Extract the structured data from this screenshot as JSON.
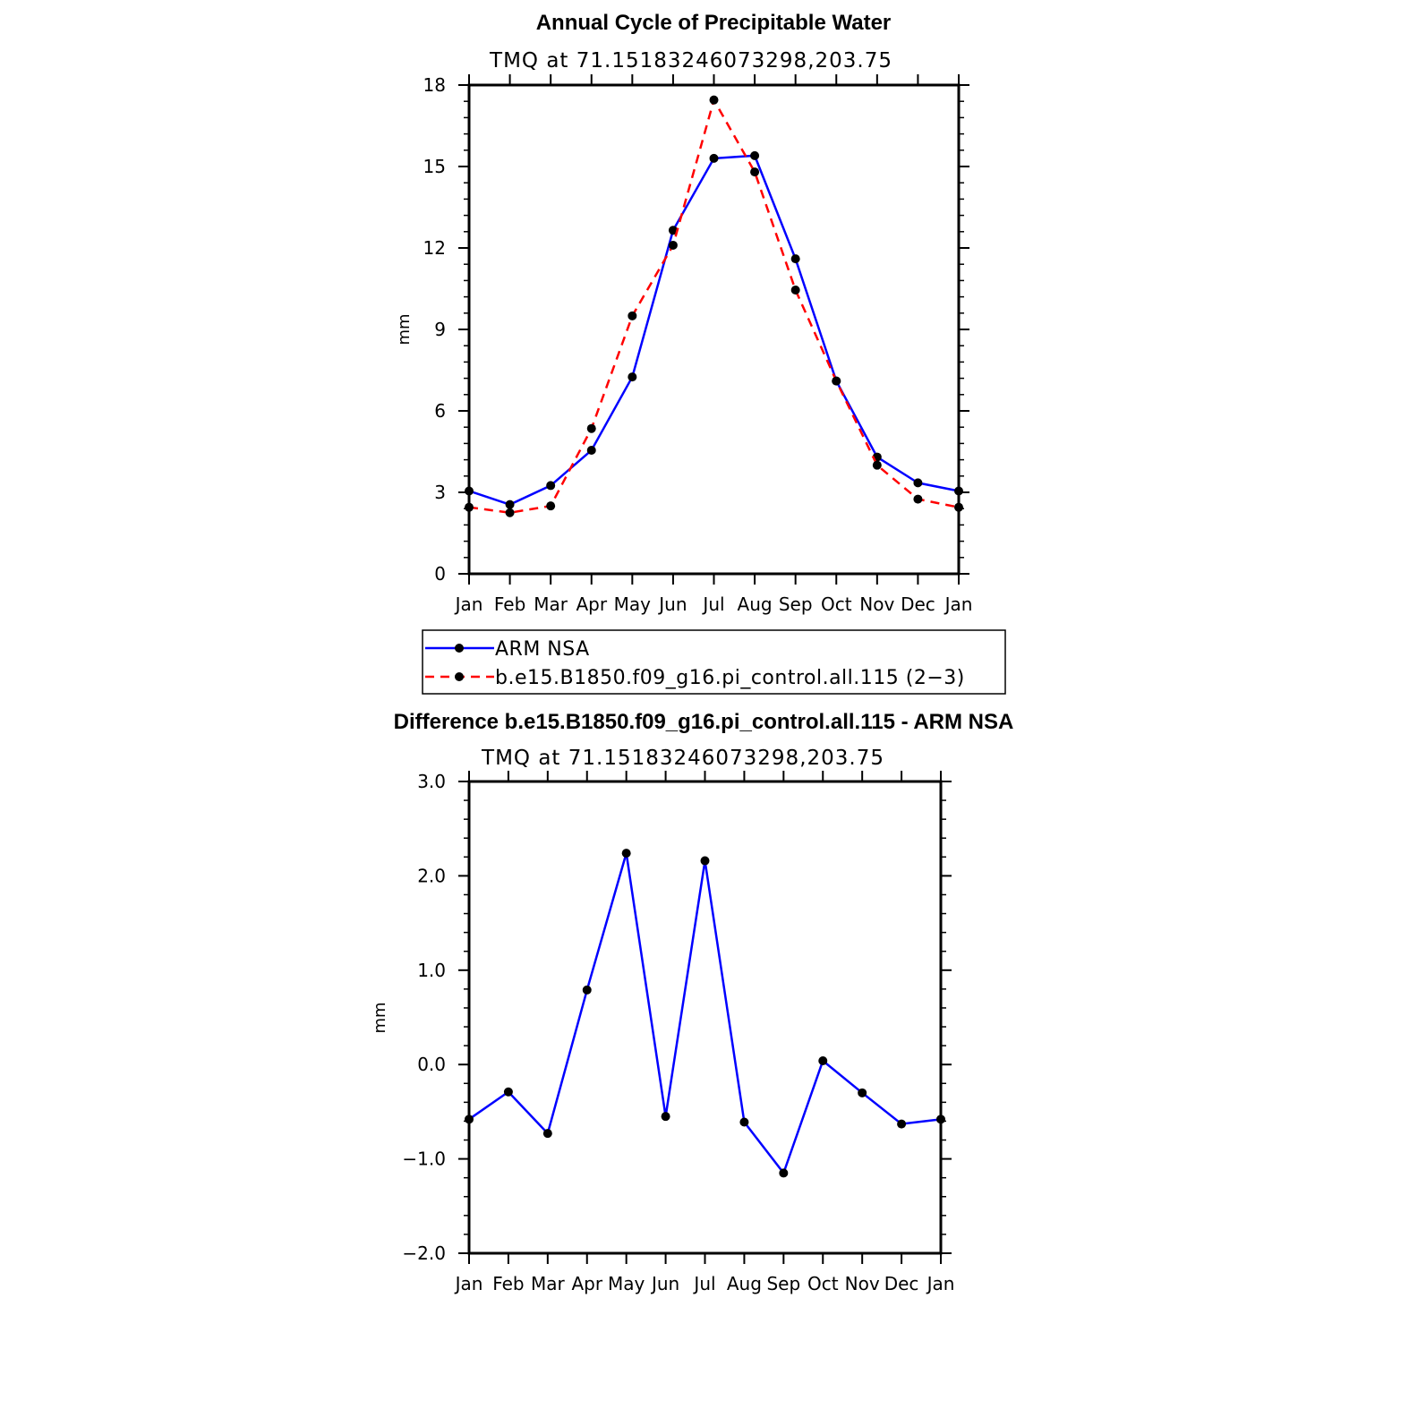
{
  "chart_data": [
    {
      "type": "line",
      "title": "Annual Cycle of Precipitable Water",
      "subtitle": "TMQ at 71.15183246073298,203.75",
      "ylabel": "mm",
      "ylim": [
        0,
        18
      ],
      "yticks": [
        "0",
        "3",
        "6",
        "9",
        "12",
        "15",
        "18"
      ],
      "yticks_values": [
        0,
        3,
        6,
        9,
        12,
        15,
        18
      ],
      "categories": [
        "Jan",
        "Feb",
        "Mar",
        "Apr",
        "May",
        "Jun",
        "Jul",
        "Aug",
        "Sep",
        "Oct",
        "Nov",
        "Dec",
        "Jan"
      ],
      "series": [
        {
          "name": "ARM  NSA",
          "color": "#0000ff",
          "dash": "solid",
          "values": [
            3.05,
            2.55,
            3.25,
            4.55,
            7.25,
            12.65,
            15.3,
            15.4,
            11.6,
            7.1,
            4.3,
            3.35,
            3.05
          ]
        },
        {
          "name": "b.e15.B1850.f09_g16.pi_control.all.115 (2-3)",
          "color": "#ff0000",
          "dash": "dashed",
          "values": [
            2.45,
            2.25,
            2.5,
            5.35,
            9.5,
            12.1,
            17.45,
            14.8,
            10.45,
            7.1,
            4.0,
            2.75,
            2.45
          ]
        }
      ],
      "legend": [
        {
          "label": "ARM  NSA",
          "color": "#0000ff",
          "dash": "solid"
        },
        {
          "label": "b.e15.B1850.f09_g16.pi_control.all.115 (2−3)",
          "color": "#ff0000",
          "dash": "dashed"
        }
      ]
    },
    {
      "type": "line",
      "title": "Difference b.e15.B1850.f09_g16.pi_control.all.115 - ARM NSA",
      "subtitle": "TMQ at 71.15183246073298,203.75",
      "ylabel": "mm",
      "ylim": [
        -2.0,
        3.0
      ],
      "yticks": [
        "−2.0",
        "−1.0",
        "0.0",
        "1.0",
        "2.0",
        "3.0"
      ],
      "yticks_values": [
        -2.0,
        -1.0,
        0.0,
        1.0,
        2.0,
        3.0
      ],
      "categories": [
        "Jan",
        "Feb",
        "Mar",
        "Apr",
        "May",
        "Jun",
        "Jul",
        "Aug",
        "Sep",
        "Oct",
        "Nov",
        "Dec",
        "Jan"
      ],
      "series": [
        {
          "name": "Difference",
          "color": "#0000ff",
          "dash": "solid",
          "values": [
            -0.58,
            -0.29,
            -0.73,
            0.79,
            2.24,
            -0.55,
            2.16,
            -0.61,
            -1.15,
            0.04,
            -0.3,
            -0.63,
            -0.58
          ]
        }
      ]
    }
  ]
}
